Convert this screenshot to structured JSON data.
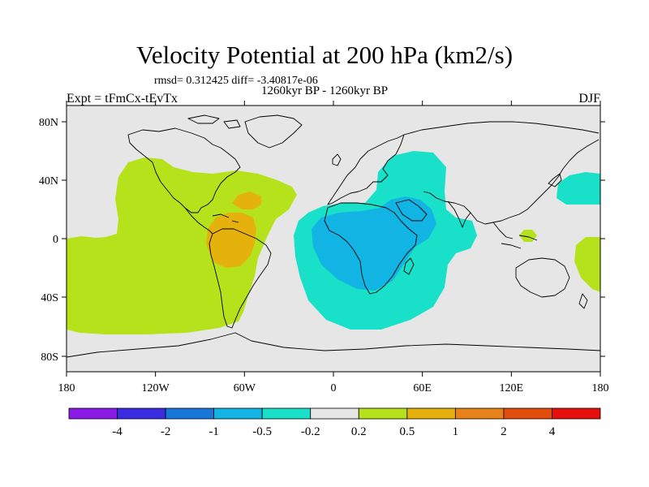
{
  "title": "Velocity Potential at 200 hPa (km2/s)",
  "stats": "rmsd= 0.312425  diff= -3.40817e-06",
  "period": "1260kyr BP - 1260kyr BP",
  "expt": "Expt = tFmCx-tEvTx",
  "season": "DJF",
  "colors": {
    "background": "#e6e6e6",
    "coastline": "#000000",
    "palette": [
      "#8a1be6",
      "#3a2ce0",
      "#1677d8",
      "#12b4e3",
      "#19e0c8",
      "#e6e6e6",
      "#b5e21a",
      "#e5b10d",
      "#e78119",
      "#e24d0c",
      "#e50f0c"
    ]
  },
  "lat_ticks": [
    "80N",
    "40N",
    "0",
    "40S",
    "80S"
  ],
  "lon_ticks": [
    "180",
    "120W",
    "60W",
    "0",
    "60E",
    "120E",
    "180"
  ],
  "colorbar_labels": [
    "-4",
    "-2",
    "-1",
    "-0.5",
    "-0.2",
    "0.2",
    "0.5",
    "1",
    "2",
    "4"
  ]
}
